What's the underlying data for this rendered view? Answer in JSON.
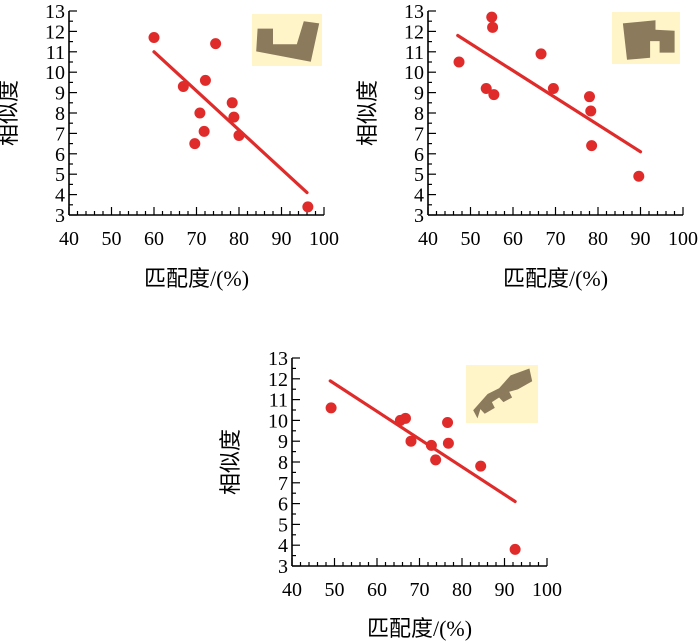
{
  "colors": {
    "point": "#e02b2b",
    "trend": "#e02b2b",
    "axis": "#000000",
    "inset_bg": "#fff5c8",
    "inset_shape": "#8b7a5c"
  },
  "chart_data": [
    {
      "type": "scatter",
      "title": "",
      "xlabel": "匹配度/(%)",
      "ylabel": "相似度",
      "xlim": [
        40,
        100
      ],
      "ylim": [
        3,
        13
      ],
      "xticks": [
        "40",
        "50",
        "60",
        "70",
        "80",
        "90",
        "100"
      ],
      "yticks": [
        "3",
        "4",
        "5",
        "6",
        "7",
        "8",
        "9",
        "10",
        "11",
        "12",
        "13"
      ],
      "inset_icon": "l-shaped-building-icon",
      "points": [
        {
          "x": 60.0,
          "y": 11.7
        },
        {
          "x": 66.9,
          "y": 9.3
        },
        {
          "x": 69.6,
          "y": 6.5
        },
        {
          "x": 70.8,
          "y": 8.0
        },
        {
          "x": 71.8,
          "y": 7.1
        },
        {
          "x": 72.1,
          "y": 9.6
        },
        {
          "x": 74.5,
          "y": 11.4
        },
        {
          "x": 78.4,
          "y": 8.5
        },
        {
          "x": 78.8,
          "y": 7.8
        },
        {
          "x": 80.0,
          "y": 6.9
        },
        {
          "x": 96.2,
          "y": 3.4
        }
      ],
      "trend": {
        "x": [
          60.0,
          96.0
        ],
        "y": [
          11.0,
          4.1
        ]
      }
    },
    {
      "type": "scatter",
      "title": "",
      "xlabel": "匹配度/(%)",
      "ylabel": "相似度",
      "xlim": [
        40,
        100
      ],
      "ylim": [
        3,
        13
      ],
      "xticks": [
        "40",
        "50",
        "60",
        "70",
        "80",
        "90",
        "100"
      ],
      "yticks": [
        "3",
        "4",
        "5",
        "6",
        "7",
        "8",
        "9",
        "10",
        "11",
        "12",
        "13"
      ],
      "inset_icon": "notched-building-icon",
      "points": [
        {
          "x": 47.3,
          "y": 10.5
        },
        {
          "x": 53.7,
          "y": 9.2
        },
        {
          "x": 55.0,
          "y": 12.7
        },
        {
          "x": 55.2,
          "y": 12.2
        },
        {
          "x": 55.5,
          "y": 8.9
        },
        {
          "x": 66.6,
          "y": 10.9
        },
        {
          "x": 69.5,
          "y": 9.2
        },
        {
          "x": 78.0,
          "y": 8.8
        },
        {
          "x": 78.3,
          "y": 8.1
        },
        {
          "x": 78.5,
          "y": 6.4
        },
        {
          "x": 89.6,
          "y": 4.9
        }
      ],
      "trend": {
        "x": [
          47.0,
          90.0
        ],
        "y": [
          11.8,
          6.1
        ]
      }
    },
    {
      "type": "scatter",
      "title": "",
      "xlabel": "匹配度/(%)",
      "ylabel": "相似度",
      "xlim": [
        40,
        100
      ],
      "ylim": [
        3,
        13
      ],
      "xticks": [
        "40",
        "50",
        "60",
        "70",
        "80",
        "90",
        "100"
      ],
      "yticks": [
        "3",
        "4",
        "5",
        "6",
        "7",
        "8",
        "9",
        "10",
        "11",
        "12",
        "13"
      ],
      "inset_icon": "key-shaped-building-icon",
      "points": [
        {
          "x": 49.2,
          "y": 10.6
        },
        {
          "x": 65.5,
          "y": 10.0
        },
        {
          "x": 66.7,
          "y": 10.1
        },
        {
          "x": 68.0,
          "y": 9.0
        },
        {
          "x": 72.8,
          "y": 8.8
        },
        {
          "x": 73.8,
          "y": 8.1
        },
        {
          "x": 76.6,
          "y": 9.9
        },
        {
          "x": 76.8,
          "y": 8.9
        },
        {
          "x": 84.4,
          "y": 7.8
        },
        {
          "x": 92.5,
          "y": 3.8
        }
      ],
      "trend": {
        "x": [
          49.0,
          92.5
        ],
        "y": [
          11.9,
          6.1
        ]
      }
    }
  ]
}
